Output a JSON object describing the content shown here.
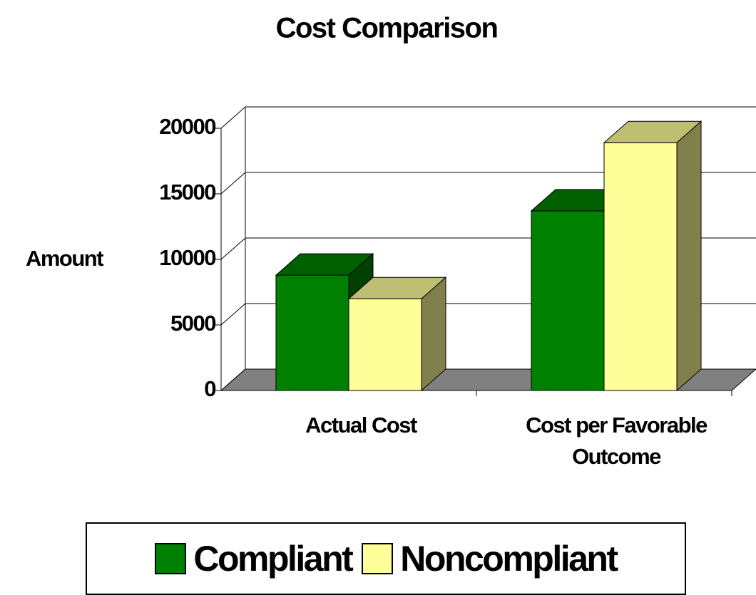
{
  "chart_data": {
    "type": "bar3d",
    "title": "Cost Comparison",
    "y_label": "Amount",
    "categories": [
      "Actual Cost",
      "Cost per Favorable Outcome"
    ],
    "series": [
      {
        "name": "Compliant",
        "color": "#008000",
        "values": [
          8800,
          13700
        ]
      },
      {
        "name": "Noncompliant",
        "color": "#ffff99",
        "values": [
          7000,
          18900
        ]
      }
    ],
    "ylim": [
      0,
      20000
    ],
    "yticks": [
      0,
      5000,
      10000,
      15000,
      20000
    ],
    "grid": true,
    "legend": "bottom"
  }
}
